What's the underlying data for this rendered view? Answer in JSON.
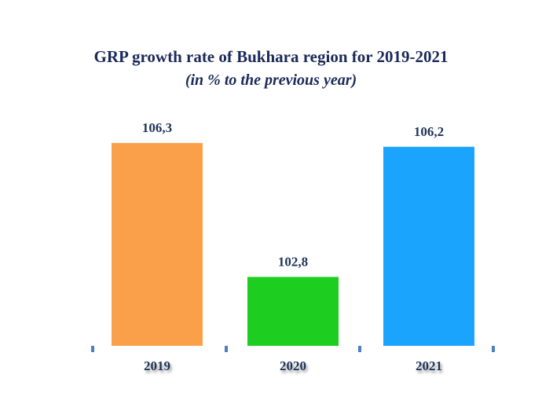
{
  "chart_data": {
    "type": "bar",
    "title": "GRP growth rate of Bukhara region for 2019-2021",
    "subtitle": "(in % to the previous year)",
    "categories": [
      "2019",
      "2020",
      "2021"
    ],
    "values": [
      106.3,
      102.8,
      106.2
    ],
    "data_labels": [
      "106,3",
      "102,8",
      "106,2"
    ],
    "colors": [
      "#fba04a",
      "#1dcd1f",
      "#1ba4fd"
    ],
    "axis_color": "#4f7fbf",
    "text_color": "#1f3458",
    "xlabel": "",
    "ylabel": "",
    "ylim": [
      101,
      106.5
    ],
    "grid": false,
    "legend": "none"
  }
}
